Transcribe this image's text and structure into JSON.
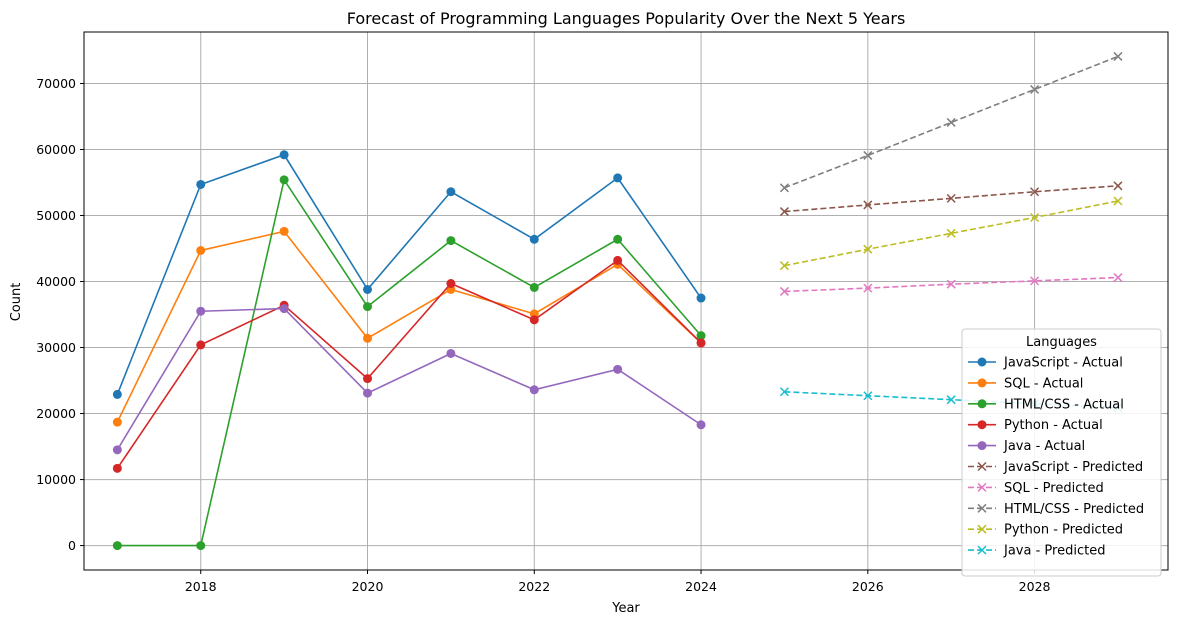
{
  "chart_data": {
    "type": "line",
    "title": "Forecast of Programming Languages Popularity Over the Next 5 Years",
    "xlabel": "Year",
    "ylabel": "Count",
    "xlim": [
      2016.6,
      2029.6
    ],
    "ylim": [
      -3700,
      77800
    ],
    "xticks": [
      2018,
      2020,
      2022,
      2024,
      2026,
      2028
    ],
    "yticks": [
      0,
      10000,
      20000,
      30000,
      40000,
      50000,
      60000,
      70000
    ],
    "grid": true,
    "legend": {
      "title": "Languages",
      "placement": "lower-right"
    },
    "series": [
      {
        "name": "JavaScript - Actual",
        "kind": "actual",
        "color": "#1f77b4",
        "x": [
          2017,
          2018,
          2019,
          2020,
          2021,
          2022,
          2023,
          2024
        ],
        "values": [
          22900,
          54700,
          59200,
          38800,
          53600,
          46400,
          55700,
          37500
        ]
      },
      {
        "name": "SQL - Actual",
        "kind": "actual",
        "color": "#ff7f0e",
        "x": [
          2017,
          2018,
          2019,
          2020,
          2021,
          2022,
          2023,
          2024
        ],
        "values": [
          18700,
          44700,
          47600,
          31400,
          38800,
          35100,
          42600,
          30700
        ]
      },
      {
        "name": "HTML/CSS - Actual",
        "kind": "actual",
        "color": "#2ca02c",
        "x": [
          2017,
          2018,
          2019,
          2020,
          2021,
          2022,
          2023,
          2024
        ],
        "values": [
          0,
          0,
          55400,
          36200,
          46200,
          39100,
          46400,
          31800
        ]
      },
      {
        "name": "Python - Actual",
        "kind": "actual",
        "color": "#d62728",
        "x": [
          2017,
          2018,
          2019,
          2020,
          2021,
          2022,
          2023,
          2024
        ],
        "values": [
          11700,
          30400,
          36400,
          25300,
          39700,
          34200,
          43200,
          30700
        ]
      },
      {
        "name": "Java - Actual",
        "kind": "actual",
        "color": "#9467bd",
        "x": [
          2017,
          2018,
          2019,
          2020,
          2021,
          2022,
          2023,
          2024
        ],
        "values": [
          14500,
          35500,
          35900,
          23100,
          29100,
          23600,
          26700,
          18300
        ]
      },
      {
        "name": "JavaScript - Predicted",
        "kind": "predicted",
        "color": "#8c564b",
        "x": [
          2025,
          2026,
          2027,
          2028,
          2029
        ],
        "values": [
          50600,
          51600,
          52600,
          53600,
          54500
        ]
      },
      {
        "name": "SQL - Predicted",
        "kind": "predicted",
        "color": "#e377c2",
        "x": [
          2025,
          2026,
          2027,
          2028,
          2029
        ],
        "values": [
          38500,
          39000,
          39600,
          40100,
          40600
        ]
      },
      {
        "name": "HTML/CSS - Predicted",
        "kind": "predicted",
        "color": "#7f7f7f",
        "x": [
          2025,
          2026,
          2027,
          2028,
          2029
        ],
        "values": [
          54200,
          59100,
          64100,
          69100,
          74100
        ]
      },
      {
        "name": "Python - Predicted",
        "kind": "predicted",
        "color": "#bcbd22",
        "x": [
          2025,
          2026,
          2027,
          2028,
          2029
        ],
        "values": [
          42400,
          44900,
          47300,
          49700,
          52200
        ]
      },
      {
        "name": "Java - Predicted",
        "kind": "predicted",
        "color": "#17becf",
        "x": [
          2025,
          2026,
          2027,
          2028,
          2029
        ],
        "values": [
          23300,
          22700,
          22100,
          21500,
          20900
        ]
      }
    ]
  }
}
